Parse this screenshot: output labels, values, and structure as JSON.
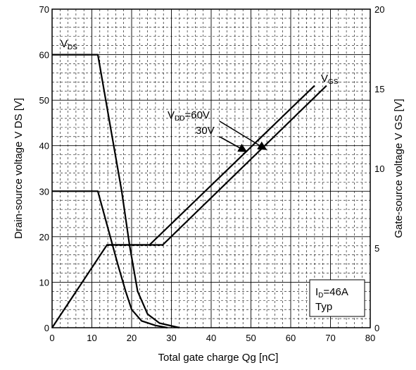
{
  "chart_data": {
    "type": "line",
    "title": "",
    "xlabel": "Total gate charge Qg [nC]",
    "ylabel_left": "Drain-source voltage V DS [V]",
    "ylabel_right": "Gate-source voltage V GS [V]",
    "xlim": [
      0,
      80
    ],
    "ylim_left": [
      0,
      70
    ],
    "ylim_right": [
      0,
      20
    ],
    "x_ticks": [
      0,
      10,
      20,
      30,
      40,
      50,
      60,
      70,
      80
    ],
    "y_left_ticks": [
      0,
      10,
      20,
      30,
      40,
      50,
      60,
      70
    ],
    "y_right_ticks": [
      0,
      5,
      10,
      15,
      20
    ],
    "grid": true,
    "series": [
      {
        "name": "V_DS, V_DD=60V",
        "axis": "left",
        "x": [
          0,
          11.5,
          14.5,
          17.5,
          19.5,
          21.5,
          24,
          27,
          32
        ],
        "y": [
          60,
          60,
          45,
          30,
          18,
          8,
          3,
          1,
          0
        ]
      },
      {
        "name": "V_DS, V_DD=30V",
        "axis": "left",
        "x": [
          0,
          11.5,
          14,
          16.5,
          18.5,
          20,
          22.5,
          26,
          29
        ],
        "y": [
          30,
          30,
          22,
          14,
          8,
          4,
          1.5,
          0.5,
          0
        ]
      },
      {
        "name": "V_GS, V_DD=60V",
        "axis": "right",
        "x": [
          0,
          13.8,
          27.8,
          69
        ],
        "y": [
          0,
          5.2,
          5.2,
          15.2
        ]
      },
      {
        "name": "V_GS, V_DD=30V",
        "axis": "right",
        "x": [
          13.8,
          24.5,
          66
        ],
        "y": [
          5.2,
          5.2,
          15.2
        ]
      }
    ],
    "annotations": {
      "vds_label": {
        "main": "V",
        "sub": "DS"
      },
      "vgs_label": {
        "main": "V",
        "sub": "GS"
      },
      "vdd_60": {
        "main": "V",
        "sub": "DD",
        "suffix": "=60V"
      },
      "vdd_30": "30V",
      "id_label": {
        "main": "I",
        "sub": "D",
        "suffix": "=46A"
      },
      "typ_label": "Typ"
    }
  }
}
